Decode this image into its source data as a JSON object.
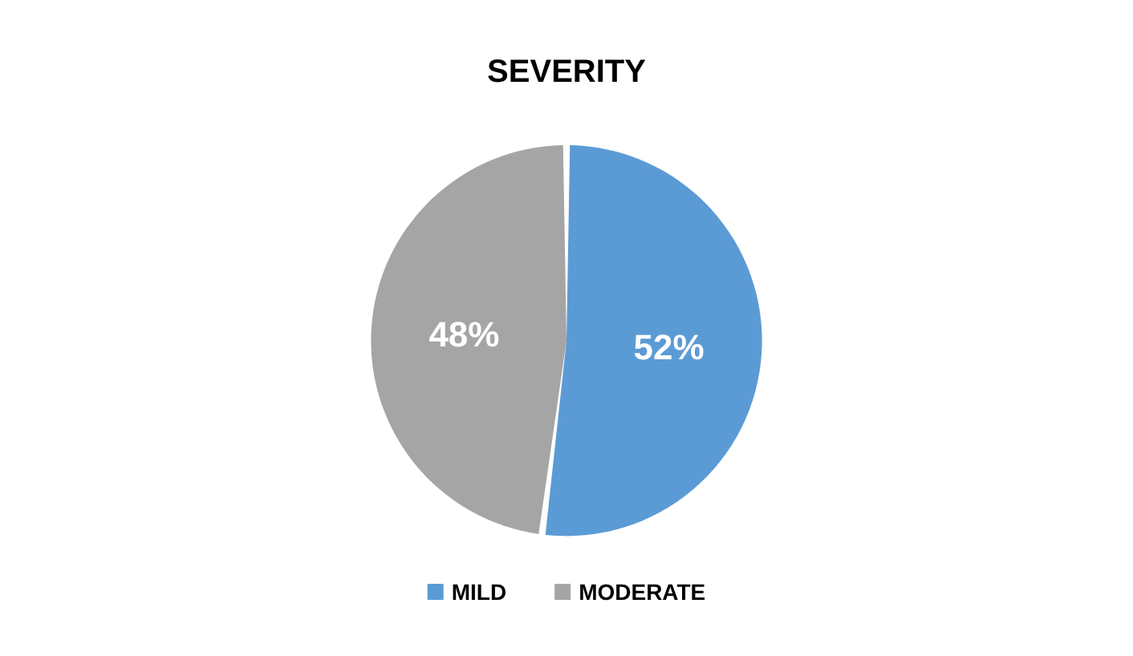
{
  "chart_data": {
    "type": "pie",
    "title": "SEVERITY",
    "categories": [
      "MILD",
      "MODERATE"
    ],
    "values": [
      52,
      48
    ],
    "colors": [
      "#5b9bd5",
      "#a5a5a5"
    ],
    "value_labels": [
      "52%",
      "48%"
    ],
    "legend": "bottom"
  }
}
